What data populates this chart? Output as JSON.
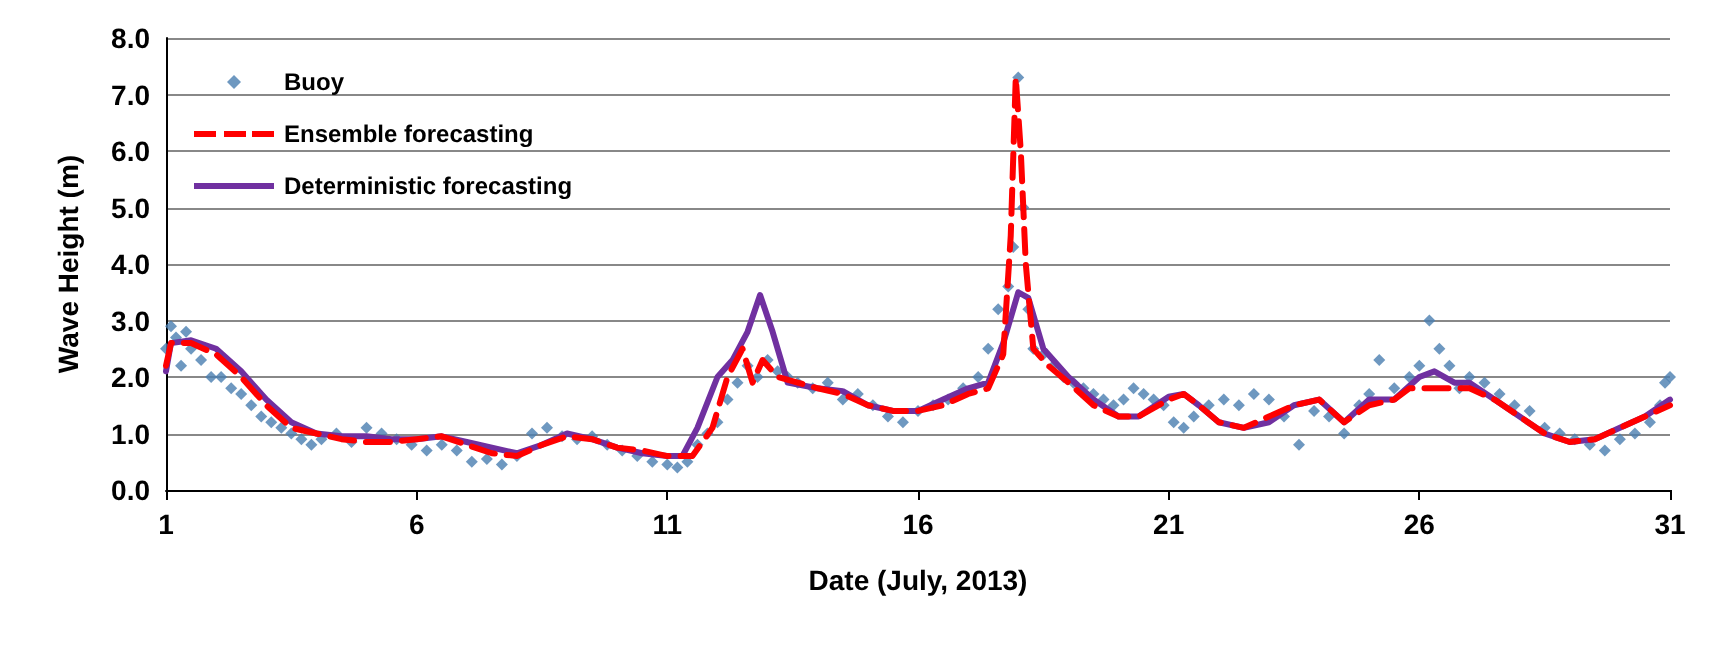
{
  "chart_data": {
    "type": "line",
    "xlabel": "Date (July, 2013)",
    "ylabel": "Wave Height (m)",
    "xlim": [
      1,
      31
    ],
    "xticks": [
      1,
      6,
      11,
      16,
      21,
      26,
      31
    ],
    "ylim": [
      0,
      8
    ],
    "yticks": [
      {
        "value": 0,
        "label": "0.0"
      },
      {
        "value": 1,
        "label": "1.0"
      },
      {
        "value": 2,
        "label": "2.0"
      },
      {
        "value": 3,
        "label": "3.0"
      },
      {
        "value": 4,
        "label": "4.0"
      },
      {
        "value": 5,
        "label": "5.0"
      },
      {
        "value": 6,
        "label": "6.0"
      },
      {
        "value": 7,
        "label": "7.0"
      },
      {
        "value": 8,
        "label": "8.0"
      }
    ],
    "grid": "y",
    "legend": "top left",
    "series": [
      {
        "name": "Buoy",
        "type": "scatter",
        "marker": "diamond",
        "color": "#4a7eb0",
        "x": [
          1,
          1.1,
          1.2,
          1.3,
          1.4,
          1.5,
          1.7,
          1.9,
          2.1,
          2.3,
          2.5,
          2.7,
          2.9,
          3.1,
          3.3,
          3.5,
          3.7,
          3.9,
          4.1,
          4.4,
          4.7,
          5,
          5.3,
          5.6,
          5.9,
          6.2,
          6.5,
          6.8,
          7.1,
          7.4,
          7.7,
          8,
          8.3,
          8.6,
          8.9,
          9.2,
          9.5,
          9.8,
          10.1,
          10.4,
          10.7,
          11,
          11.2,
          11.4,
          11.6,
          11.8,
          12,
          12.2,
          12.4,
          12.6,
          12.8,
          13,
          13.2,
          13.4,
          13.6,
          13.9,
          14.2,
          14.5,
          14.8,
          15.1,
          15.4,
          15.7,
          16,
          16.3,
          16.6,
          16.9,
          17.2,
          17.4,
          17.6,
          17.8,
          17.9,
          18,
          18.1,
          18.2,
          18.3,
          18.5,
          18.7,
          18.9,
          19.1,
          19.3,
          19.5,
          19.7,
          19.9,
          20.1,
          20.3,
          20.5,
          20.7,
          20.9,
          21.1,
          21.3,
          21.5,
          21.8,
          22.1,
          22.4,
          22.7,
          23,
          23.3,
          23.6,
          23.9,
          24.2,
          24.5,
          24.8,
          25,
          25.2,
          25.5,
          25.8,
          26,
          26.2,
          26.4,
          26.6,
          26.8,
          27,
          27.3,
          27.6,
          27.9,
          28.2,
          28.5,
          28.8,
          29.1,
          29.4,
          29.7,
          30,
          30.3,
          30.6,
          30.8,
          30.9,
          31
        ],
        "values": [
          2.5,
          2.9,
          2.7,
          2.2,
          2.8,
          2.5,
          2.3,
          2.0,
          2.0,
          1.8,
          1.7,
          1.5,
          1.3,
          1.2,
          1.1,
          1.0,
          0.9,
          0.8,
          0.9,
          1.0,
          0.85,
          1.1,
          1.0,
          0.9,
          0.8,
          0.7,
          0.8,
          0.7,
          0.5,
          0.55,
          0.45,
          0.6,
          1.0,
          1.1,
          0.95,
          0.9,
          0.95,
          0.8,
          0.7,
          0.6,
          0.5,
          0.45,
          0.4,
          0.5,
          0.8,
          1.0,
          1.2,
          1.6,
          1.9,
          2.2,
          2.0,
          2.3,
          2.1,
          2.0,
          1.9,
          1.8,
          1.9,
          1.6,
          1.7,
          1.5,
          1.3,
          1.2,
          1.4,
          1.5,
          1.6,
          1.8,
          2.0,
          2.5,
          3.2,
          3.6,
          4.3,
          7.3,
          5.0,
          3.2,
          2.5,
          2.4,
          2.2,
          2.0,
          1.9,
          1.8,
          1.7,
          1.6,
          1.5,
          1.6,
          1.8,
          1.7,
          1.6,
          1.5,
          1.2,
          1.1,
          1.3,
          1.5,
          1.6,
          1.5,
          1.7,
          1.6,
          1.3,
          0.8,
          1.4,
          1.3,
          1.0,
          1.5,
          1.7,
          2.3,
          1.8,
          2.0,
          2.2,
          3.0,
          2.5,
          2.2,
          1.8,
          2.0,
          1.9,
          1.7,
          1.5,
          1.4,
          1.1,
          1.0,
          0.9,
          0.8,
          0.7,
          0.9,
          1.0,
          1.2,
          1.5,
          1.9,
          2.0
        ]
      },
      {
        "name": "Ensemble forecasting",
        "color": "#ff0000",
        "line_style": "dashed",
        "marker": "none",
        "x": [
          1,
          1.1,
          1.5,
          2,
          2.5,
          3,
          3.5,
          4,
          4.5,
          5,
          5.5,
          6,
          6.5,
          7,
          7.5,
          8,
          8.5,
          9,
          9.5,
          10,
          10.5,
          11,
          11.5,
          11.9,
          12.2,
          12.5,
          12.7,
          12.9,
          13.2,
          13.6,
          14,
          14.5,
          15,
          15.5,
          16,
          16.5,
          17,
          17.4,
          17.7,
          17.85,
          17.95,
          18.05,
          18.15,
          18.3,
          18.6,
          19,
          19.5,
          20,
          20.4,
          21,
          21.3,
          21.6,
          22,
          22.5,
          23,
          23.5,
          24,
          24.5,
          25,
          25.5,
          25.8,
          26.3,
          26.7,
          27,
          27.5,
          28,
          28.5,
          29,
          29.5,
          30,
          30.5,
          31
        ],
        "values": [
          2.2,
          2.6,
          2.6,
          2.4,
          2.0,
          1.5,
          1.1,
          1.0,
          0.9,
          0.85,
          0.85,
          0.9,
          0.95,
          0.8,
          0.65,
          0.6,
          0.8,
          0.95,
          0.9,
          0.75,
          0.7,
          0.6,
          0.6,
          1.1,
          2.0,
          2.5,
          1.9,
          2.3,
          2.0,
          1.9,
          1.8,
          1.7,
          1.5,
          1.4,
          1.4,
          1.5,
          1.7,
          1.8,
          2.4,
          4.5,
          7.3,
          6.0,
          4.0,
          2.5,
          2.2,
          1.9,
          1.5,
          1.3,
          1.3,
          1.6,
          1.7,
          1.5,
          1.2,
          1.1,
          1.3,
          1.5,
          1.6,
          1.2,
          1.5,
          1.6,
          1.8,
          1.8,
          1.8,
          1.8,
          1.6,
          1.3,
          1.0,
          0.85,
          0.9,
          1.1,
          1.3,
          1.5
        ]
      },
      {
        "name": "Deterministic forecasting",
        "color": "#7030a0",
        "marker": "none",
        "x": [
          1,
          1.1,
          1.5,
          2,
          2.5,
          3,
          3.5,
          4,
          4.5,
          5,
          5.5,
          6,
          6.5,
          7,
          7.5,
          8,
          8.5,
          9,
          9.5,
          10,
          10.5,
          11,
          11.3,
          11.6,
          12,
          12.3,
          12.6,
          12.85,
          13.1,
          13.4,
          14,
          14.5,
          15,
          15.5,
          16,
          16.5,
          17,
          17.4,
          17.7,
          18,
          18.2,
          18.5,
          19,
          19.5,
          20,
          20.4,
          21,
          21.3,
          21.6,
          22,
          22.5,
          23,
          23.5,
          24,
          24.5,
          25,
          25.5,
          26,
          26.3,
          26.7,
          27,
          27.5,
          28,
          28.5,
          29,
          29.5,
          30,
          30.5,
          31
        ],
        "values": [
          2.1,
          2.6,
          2.65,
          2.5,
          2.1,
          1.6,
          1.2,
          1.0,
          0.95,
          0.95,
          0.9,
          0.9,
          0.95,
          0.85,
          0.75,
          0.65,
          0.8,
          1.0,
          0.9,
          0.75,
          0.65,
          0.6,
          0.6,
          1.1,
          2.0,
          2.3,
          2.8,
          3.45,
          2.8,
          1.9,
          1.8,
          1.75,
          1.5,
          1.4,
          1.4,
          1.6,
          1.8,
          1.9,
          2.6,
          3.5,
          3.4,
          2.5,
          2.0,
          1.6,
          1.3,
          1.3,
          1.65,
          1.7,
          1.5,
          1.2,
          1.1,
          1.2,
          1.5,
          1.6,
          1.2,
          1.6,
          1.6,
          2.0,
          2.1,
          1.9,
          1.9,
          1.6,
          1.3,
          1.0,
          0.85,
          0.9,
          1.1,
          1.3,
          1.6
        ]
      }
    ]
  }
}
